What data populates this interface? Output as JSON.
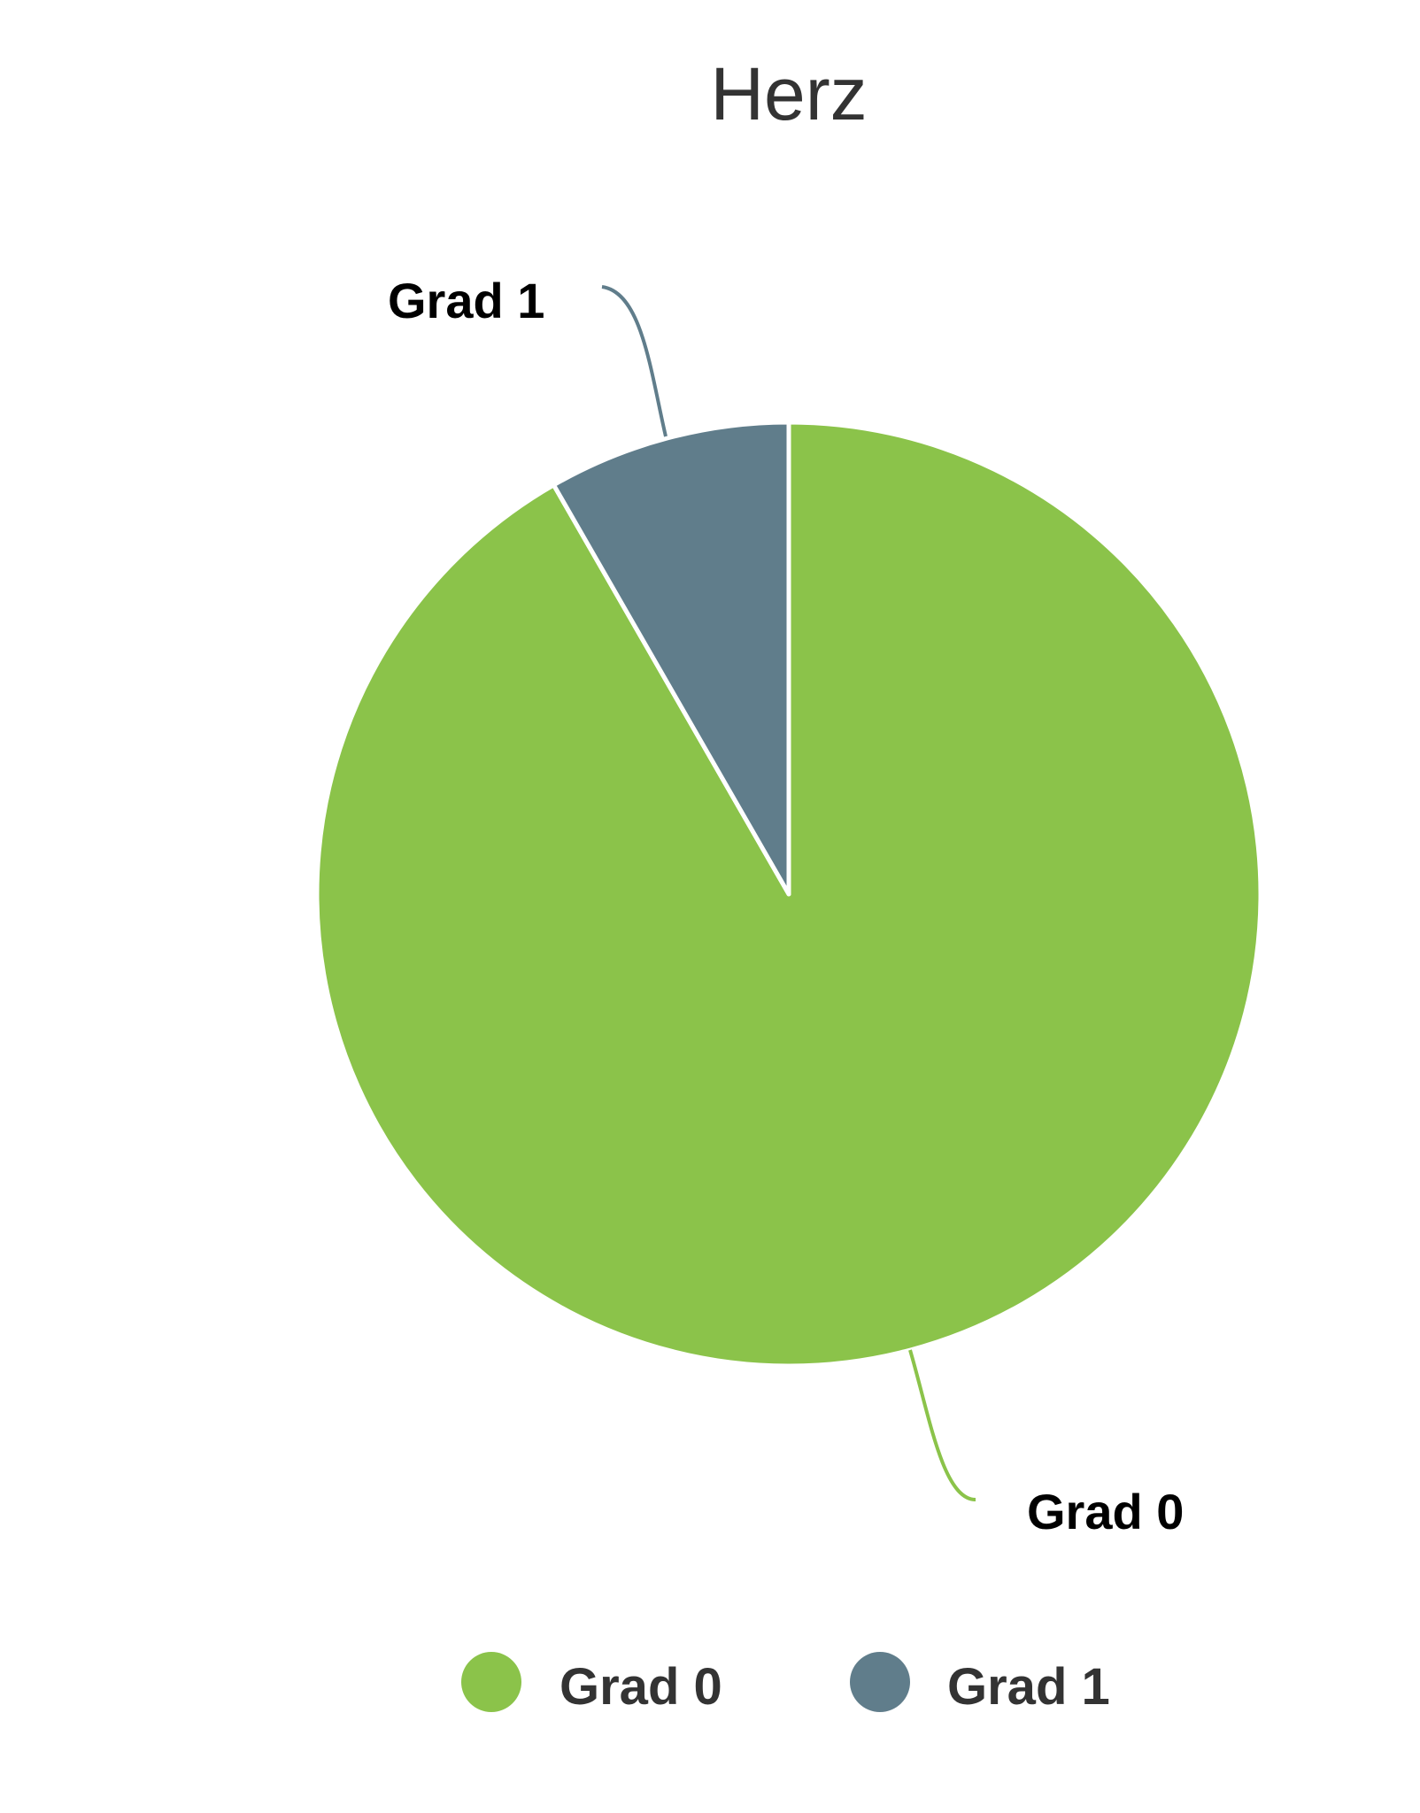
{
  "chart_data": {
    "type": "pie",
    "title": "Herz",
    "unit": "percent",
    "slices": [
      {
        "name": "Grad 0",
        "value": 91.7,
        "color": "#8bc34a"
      },
      {
        "name": "Grad 1",
        "value": 8.3,
        "color": "#607d8b"
      }
    ],
    "legend": {
      "position": "bottom",
      "entries": [
        "Grad 0",
        "Grad 1"
      ]
    },
    "data_labels": [
      "Grad 0",
      "Grad 1"
    ]
  }
}
